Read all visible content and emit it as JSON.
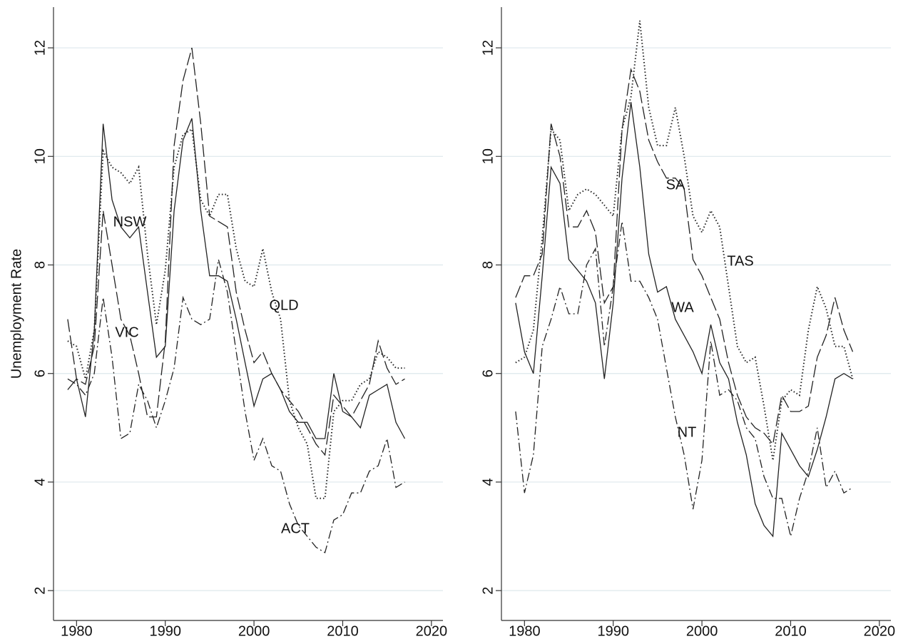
{
  "chart_data": [
    {
      "type": "line",
      "ylabel": "Unemployment Rate",
      "x": [
        1979,
        1980,
        1981,
        1982,
        1983,
        1984,
        1985,
        1986,
        1987,
        1988,
        1989,
        1990,
        1991,
        1992,
        1993,
        1994,
        1995,
        1996,
        1997,
        1998,
        1999,
        2000,
        2001,
        2002,
        2003,
        2004,
        2005,
        2006,
        2007,
        2008,
        2009,
        2010,
        2011,
        2012,
        2013,
        2014,
        2015,
        2016,
        2017
      ],
      "xlim": [
        1977.4,
        2021.3
      ],
      "ylim": [
        1.45,
        12.75
      ],
      "xticks": [
        1980,
        1990,
        2000,
        2010,
        2020
      ],
      "yticks": [
        2,
        4,
        6,
        8,
        10,
        12
      ],
      "grid": true,
      "series": [
        {
          "name": "NSW",
          "color": "#222222",
          "dash": "solid",
          "values": [
            5.7,
            5.9,
            5.2,
            6.8,
            10.6,
            9.2,
            8.7,
            8.5,
            8.7,
            7.5,
            6.3,
            6.5,
            9.0,
            10.3,
            10.7,
            9.0,
            7.8,
            7.8,
            7.7,
            7.0,
            6.2,
            5.4,
            5.9,
            6.0,
            5.7,
            5.3,
            5.1,
            5.1,
            4.8,
            4.8,
            6.0,
            5.3,
            5.2,
            5.0,
            5.6,
            5.7,
            5.8,
            5.1,
            4.8
          ]
        },
        {
          "name": "VIC",
          "color": "#222222",
          "dash": "long-dash",
          "values": [
            7.0,
            5.9,
            5.8,
            6.5,
            9.0,
            8.0,
            7.0,
            6.7,
            6.0,
            5.2,
            5.2,
            6.6,
            10.2,
            11.4,
            12.0,
            10.6,
            8.9,
            8.8,
            8.7,
            7.5,
            6.8,
            6.2,
            6.4,
            6.0,
            5.7,
            5.5,
            5.3,
            5.0,
            4.7,
            4.5,
            5.6,
            5.4,
            5.2,
            5.5,
            5.8,
            6.6,
            6.1,
            5.8,
            5.9
          ]
        },
        {
          "name": "QLD",
          "color": "#222222",
          "dash": "dot",
          "values": [
            6.6,
            6.5,
            5.9,
            6.8,
            10.1,
            9.8,
            9.7,
            9.5,
            9.8,
            8.2,
            6.9,
            7.9,
            9.8,
            10.4,
            10.5,
            9.2,
            8.9,
            9.3,
            9.3,
            8.3,
            7.7,
            7.6,
            8.3,
            7.5,
            7.0,
            5.5,
            5.0,
            4.7,
            3.7,
            3.7,
            5.3,
            5.5,
            5.5,
            5.8,
            5.9,
            6.4,
            6.3,
            6.1,
            6.1
          ]
        },
        {
          "name": "ACT",
          "color": "#222222",
          "dash": "dash-dot",
          "values": [
            5.9,
            5.8,
            5.6,
            6.0,
            7.4,
            6.3,
            4.8,
            4.9,
            5.8,
            5.5,
            5.0,
            5.5,
            6.1,
            7.4,
            7.0,
            6.9,
            7.0,
            8.1,
            7.5,
            6.4,
            5.3,
            4.4,
            4.8,
            4.3,
            4.2,
            3.6,
            3.2,
            3.0,
            2.8,
            2.7,
            3.3,
            3.4,
            3.8,
            3.8,
            4.2,
            4.3,
            4.8,
            3.9,
            4.0
          ]
        }
      ]
    },
    {
      "type": "line",
      "x": [
        1979,
        1980,
        1981,
        1982,
        1983,
        1984,
        1985,
        1986,
        1987,
        1988,
        1989,
        1990,
        1991,
        1992,
        1993,
        1994,
        1995,
        1996,
        1997,
        1998,
        1999,
        2000,
        2001,
        2002,
        2003,
        2004,
        2005,
        2006,
        2007,
        2008,
        2009,
        2010,
        2011,
        2012,
        2013,
        2014,
        2015,
        2016,
        2017
      ],
      "xlim": [
        1977.4,
        2021.3
      ],
      "ylim": [
        1.45,
        12.75
      ],
      "xticks": [
        1980,
        1990,
        2000,
        2010,
        2020
      ],
      "yticks": [
        2,
        4,
        6,
        8,
        10,
        12
      ],
      "grid": true,
      "series": [
        {
          "name": "WA",
          "color": "#222222",
          "dash": "solid",
          "values": [
            7.3,
            6.4,
            6.0,
            7.8,
            9.8,
            9.5,
            8.1,
            7.9,
            7.7,
            7.3,
            5.9,
            7.3,
            9.6,
            11.0,
            9.8,
            8.2,
            7.5,
            7.6,
            7.0,
            6.7,
            6.4,
            6.0,
            6.9,
            6.2,
            5.9,
            5.1,
            4.5,
            3.6,
            3.2,
            3.0,
            4.9,
            4.6,
            4.3,
            4.1,
            4.6,
            5.2,
            5.9,
            6.0,
            5.9
          ]
        },
        {
          "name": "SA",
          "color": "#222222",
          "dash": "long-dash",
          "values": [
            7.4,
            7.8,
            7.8,
            8.2,
            10.6,
            10.0,
            8.7,
            8.7,
            9.0,
            8.6,
            7.3,
            7.6,
            10.5,
            11.6,
            11.2,
            10.3,
            9.9,
            9.6,
            9.6,
            9.4,
            8.1,
            7.8,
            7.4,
            7.0,
            6.2,
            5.6,
            5.2,
            5.0,
            4.9,
            4.7,
            5.6,
            5.3,
            5.3,
            5.4,
            6.3,
            6.7,
            7.4,
            6.8,
            6.4
          ]
        },
        {
          "name": "TAS",
          "color": "#222222",
          "dash": "dot",
          "values": [
            6.2,
            6.3,
            6.8,
            8.5,
            10.5,
            10.3,
            9.0,
            9.3,
            9.4,
            9.3,
            9.1,
            8.9,
            10.5,
            11.1,
            12.5,
            10.9,
            10.2,
            10.2,
            10.9,
            10.0,
            8.9,
            8.6,
            9.0,
            8.7,
            7.6,
            6.5,
            6.2,
            6.3,
            5.4,
            4.4,
            5.5,
            5.7,
            5.6,
            6.8,
            7.6,
            7.2,
            6.5,
            6.5,
            5.9
          ]
        },
        {
          "name": "NT",
          "color": "#222222",
          "dash": "dash-dot",
          "values": [
            5.3,
            3.8,
            4.5,
            6.5,
            7.0,
            7.6,
            7.1,
            7.1,
            8.0,
            8.3,
            6.5,
            7.6,
            8.8,
            7.7,
            7.7,
            7.4,
            7.0,
            6.1,
            5.2,
            4.5,
            3.5,
            4.4,
            6.6,
            5.6,
            5.7,
            5.5,
            5.0,
            4.8,
            4.1,
            3.7,
            3.7,
            3.0,
            3.7,
            4.2,
            5.0,
            3.9,
            4.2,
            3.8,
            3.9
          ]
        }
      ]
    }
  ]
}
